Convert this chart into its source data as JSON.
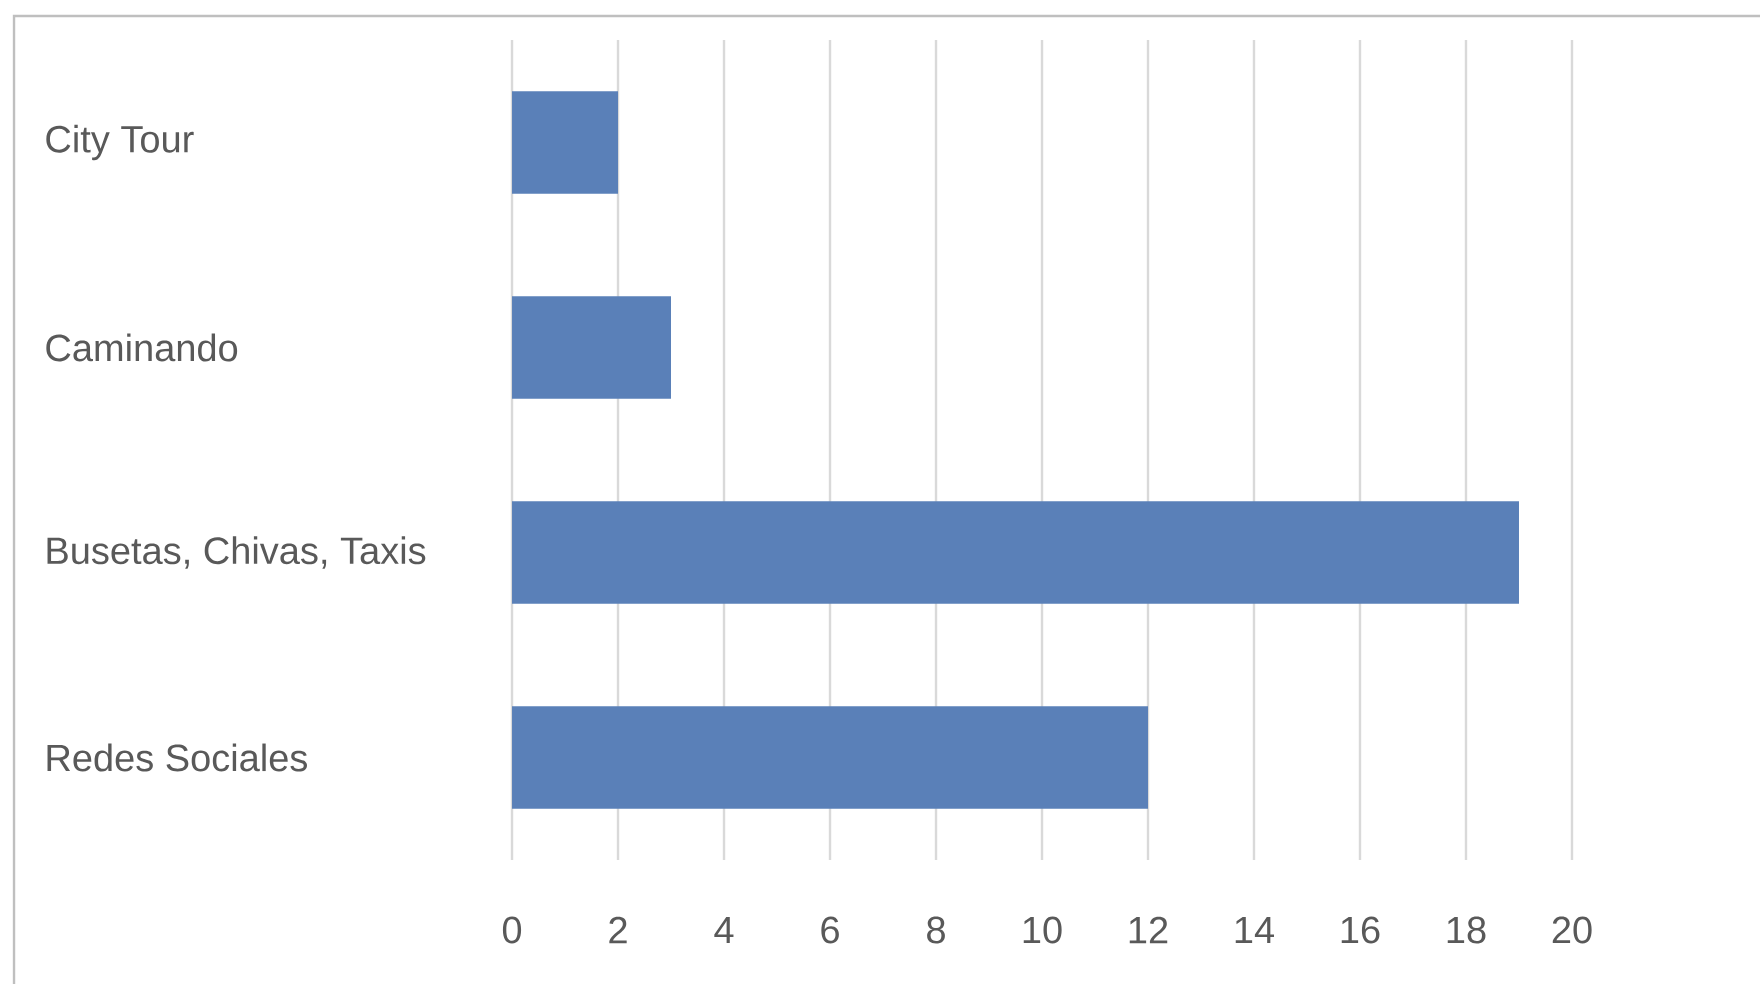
{
  "chart_data": {
    "type": "bar",
    "orientation": "horizontal",
    "categories": [
      "City Tour",
      "Caminando",
      "Busetas, Chivas, Taxis",
      "Redes Sociales"
    ],
    "values": [
      2,
      3,
      19,
      12
    ],
    "color": "#5a80b8",
    "xlim": [
      0,
      20
    ],
    "xticks": [
      0,
      2,
      4,
      6,
      8,
      10,
      12,
      14,
      16,
      18,
      20
    ],
    "grid": "x"
  }
}
